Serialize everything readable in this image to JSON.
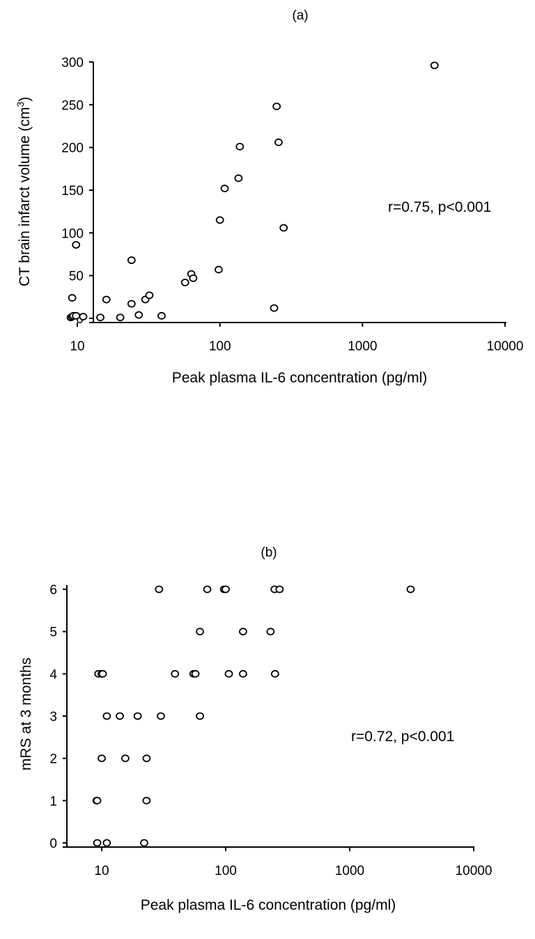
{
  "chart_data": [
    {
      "type": "scatter",
      "title": "(a)",
      "xlabel": "Peak plasma IL-6 concentration (pg/ml)",
      "ylabel_main": "CT brain infarct volume (cm",
      "ylabel_sup": "3",
      "ylabel_end": ")",
      "xscale": "log",
      "xlim": [
        5,
        10000
      ],
      "ylim": [
        0,
        300
      ],
      "xticks": [
        10,
        100,
        1000,
        10000
      ],
      "xtick_labels": [
        "10",
        "100",
        "1000",
        "10000"
      ],
      "yticks": [
        0,
        50,
        100,
        150,
        200,
        250,
        300
      ],
      "ytick_labels": [
        "0",
        "50",
        "100",
        "150",
        "200",
        "250",
        "300"
      ],
      "annotation": "r=0.75, p<0.001",
      "grid": false,
      "legend": "none",
      "x": [
        9,
        9.2,
        9.4,
        9.8,
        11,
        14.5,
        20,
        9.2,
        16,
        24,
        27,
        30,
        32,
        39,
        24,
        57,
        63,
        65,
        98,
        100,
        108,
        135,
        138,
        240,
        250,
        258,
        280,
        3200,
        9.8
      ],
      "y": [
        1,
        2,
        3,
        3,
        2,
        1,
        1,
        24,
        22,
        17,
        4,
        22,
        27,
        3,
        68,
        42,
        52,
        47,
        57,
        115,
        152,
        164,
        201,
        12,
        248,
        206,
        106,
        296,
        86
      ]
    },
    {
      "type": "scatter",
      "title": "(b)",
      "xlabel": "Peak plasma IL-6 concentration (pg/ml)",
      "ylabel": "mRS at 3 months",
      "xscale": "log",
      "xlim": [
        5,
        10000
      ],
      "ylim": [
        0,
        6
      ],
      "xticks": [
        10,
        100,
        1000,
        10000
      ],
      "xtick_labels": [
        "10",
        "100",
        "1000",
        "10000"
      ],
      "yticks": [
        0,
        1,
        2,
        3,
        4,
        5,
        6
      ],
      "ytick_labels": [
        "0",
        "1",
        "2",
        "3",
        "4",
        "5",
        "6"
      ],
      "annotation": "r=0.72, p<0.001",
      "grid": false,
      "legend": "none",
      "x": [
        9.2,
        11,
        22,
        9.1,
        9.2,
        23,
        10,
        15.5,
        23,
        11,
        14,
        19.5,
        30,
        62,
        9.4,
        10,
        10.2,
        39,
        55,
        57,
        106,
        138,
        250,
        62,
        138,
        230,
        29,
        71,
        97,
        100,
        248,
        272,
        3100
      ],
      "y": [
        0,
        0,
        0,
        1,
        1,
        1,
        2,
        2,
        2,
        3,
        3,
        3,
        3,
        3,
        4,
        4,
        4,
        4,
        4,
        4,
        4,
        4,
        4,
        5,
        5,
        5,
        6,
        6,
        6,
        6,
        6,
        6,
        6
      ]
    }
  ]
}
